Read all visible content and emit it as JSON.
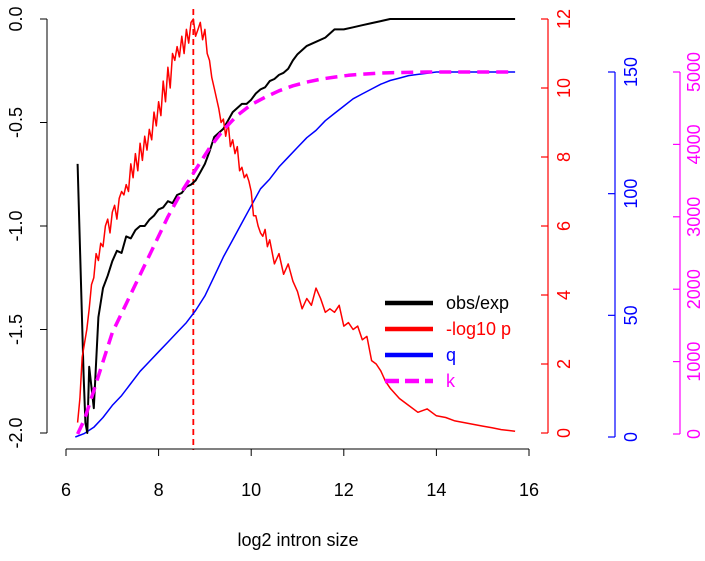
{
  "chart_data": {
    "type": "line",
    "title": "",
    "xlabel": "log2 intron size",
    "xlim": [
      5.8,
      16.0
    ],
    "x_ticks": [
      "6",
      "8",
      "10",
      "12",
      "14",
      "16"
    ],
    "grid": false,
    "legend_position": "lower-right",
    "vline": {
      "x": 8.75,
      "color": "#ff0000",
      "style": "dashed"
    },
    "axes": [
      {
        "id": "left",
        "side": "left",
        "color": "#000000",
        "range": [
          -2.0,
          0.0
        ],
        "ticks": [
          "0.0",
          "-0.5",
          "-1.0",
          "-1.5",
          "-2.0"
        ]
      },
      {
        "id": "p",
        "side": "right",
        "color": "#ff0000",
        "range": [
          0,
          12
        ],
        "ticks": [
          "0",
          "2",
          "4",
          "6",
          "8",
          "10",
          "12"
        ]
      },
      {
        "id": "q",
        "side": "right",
        "color": "#0000ff",
        "range": [
          0,
          150
        ],
        "ticks": [
          "0",
          "50",
          "100",
          "150"
        ]
      },
      {
        "id": "k",
        "side": "right",
        "color": "#ff00ff",
        "range": [
          0,
          5000
        ],
        "ticks": [
          "0",
          "1000",
          "2000",
          "3000",
          "4000",
          "5000"
        ]
      }
    ],
    "series": [
      {
        "name": "obs/exp",
        "axis": "left",
        "color": "#000000",
        "width": 2.0,
        "dash": "",
        "x": [
          6.25,
          6.38,
          6.42,
          6.46,
          6.5,
          6.55,
          6.6,
          6.7,
          6.8,
          6.9,
          7.0,
          7.1,
          7.2,
          7.3,
          7.4,
          7.5,
          7.6,
          7.7,
          7.8,
          7.9,
          8.0,
          8.1,
          8.2,
          8.3,
          8.4,
          8.5,
          8.6,
          8.7,
          8.8,
          8.9,
          9.0,
          9.1,
          9.2,
          9.3,
          9.4,
          9.5,
          9.6,
          9.7,
          9.8,
          9.9,
          10.0,
          10.1,
          10.2,
          10.3,
          10.4,
          10.5,
          10.6,
          10.7,
          10.8,
          10.9,
          11.0,
          11.2,
          11.4,
          11.6,
          11.8,
          12.0,
          12.2,
          12.4,
          12.6,
          12.8,
          13.0,
          13.2,
          13.5,
          14.0,
          14.5,
          15.0,
          15.5,
          15.7
        ],
        "y": [
          -0.7,
          -1.72,
          -1.95,
          -2.0,
          -1.68,
          -1.78,
          -1.88,
          -1.44,
          -1.3,
          -1.24,
          -1.17,
          -1.12,
          -1.13,
          -1.05,
          -1.06,
          -1.02,
          -1.0,
          -1.0,
          -0.97,
          -0.95,
          -0.92,
          -0.91,
          -0.88,
          -0.89,
          -0.85,
          -0.84,
          -0.81,
          -0.8,
          -0.78,
          -0.74,
          -0.7,
          -0.64,
          -0.57,
          -0.55,
          -0.53,
          -0.49,
          -0.45,
          -0.43,
          -0.41,
          -0.41,
          -0.39,
          -0.36,
          -0.34,
          -0.33,
          -0.3,
          -0.29,
          -0.27,
          -0.26,
          -0.24,
          -0.2,
          -0.17,
          -0.13,
          -0.11,
          -0.09,
          -0.05,
          -0.05,
          -0.04,
          -0.03,
          -0.02,
          -0.01,
          0.0,
          0.0,
          0.0,
          0.0,
          0.0,
          0.0,
          0.0,
          0.0
        ]
      },
      {
        "name": "-log10 p",
        "axis": "p",
        "color": "#ff0000",
        "width": 1.5,
        "dash": "",
        "x": [
          6.25,
          6.3,
          6.35,
          6.4,
          6.45,
          6.5,
          6.55,
          6.6,
          6.65,
          6.7,
          6.75,
          6.8,
          6.85,
          6.9,
          6.95,
          7.0,
          7.05,
          7.1,
          7.15,
          7.2,
          7.25,
          7.3,
          7.35,
          7.4,
          7.45,
          7.5,
          7.55,
          7.6,
          7.65,
          7.7,
          7.75,
          7.8,
          7.85,
          7.9,
          7.95,
          8.0,
          8.05,
          8.1,
          8.15,
          8.2,
          8.25,
          8.3,
          8.35,
          8.4,
          8.45,
          8.5,
          8.55,
          8.6,
          8.65,
          8.7,
          8.75,
          8.8,
          8.85,
          8.9,
          8.95,
          9.0,
          9.05,
          9.1,
          9.15,
          9.2,
          9.25,
          9.3,
          9.35,
          9.4,
          9.45,
          9.5,
          9.55,
          9.6,
          9.65,
          9.7,
          9.75,
          9.8,
          9.85,
          9.9,
          9.95,
          10.0,
          10.05,
          10.1,
          10.15,
          10.2,
          10.25,
          10.3,
          10.35,
          10.4,
          10.5,
          10.6,
          10.7,
          10.8,
          10.9,
          11.0,
          11.1,
          11.2,
          11.3,
          11.4,
          11.5,
          11.6,
          11.7,
          11.8,
          11.9,
          12.0,
          12.1,
          12.2,
          12.3,
          12.4,
          12.5,
          12.6,
          12.7,
          12.8,
          12.9,
          13.0,
          13.2,
          13.4,
          13.6,
          13.8,
          14.0,
          14.2,
          14.4,
          14.6,
          14.8,
          15.0,
          15.2,
          15.4,
          15.7
        ],
        "y": [
          0.3,
          1.0,
          2.2,
          2.6,
          3.0,
          3.6,
          4.3,
          4.5,
          5.2,
          5.0,
          5.5,
          5.4,
          6.0,
          6.2,
          5.8,
          6.4,
          6.6,
          6.2,
          6.8,
          7.0,
          6.9,
          7.2,
          7.0,
          7.8,
          7.4,
          8.1,
          7.6,
          8.4,
          7.9,
          8.6,
          8.2,
          8.8,
          8.5,
          9.3,
          8.9,
          9.6,
          9.2,
          10.2,
          9.6,
          10.6,
          10.0,
          11.0,
          10.8,
          11.2,
          10.9,
          11.5,
          11.0,
          11.7,
          11.3,
          11.9,
          12.0,
          11.5,
          11.7,
          11.9,
          11.4,
          11.7,
          11.0,
          10.8,
          10.3,
          10.0,
          9.7,
          9.4,
          9.0,
          9.1,
          8.6,
          9.0,
          8.3,
          8.5,
          8.1,
          8.3,
          7.6,
          7.7,
          7.4,
          7.5,
          7.3,
          7.0,
          6.3,
          6.3,
          6.0,
          5.8,
          5.7,
          5.9,
          5.4,
          5.6,
          4.9,
          5.2,
          4.6,
          4.9,
          4.4,
          4.1,
          3.6,
          3.9,
          3.7,
          4.2,
          3.9,
          3.5,
          3.6,
          3.5,
          3.7,
          3.1,
          3.2,
          3.0,
          3.1,
          2.7,
          2.8,
          2.1,
          2.0,
          1.8,
          1.5,
          1.3,
          1.0,
          0.8,
          0.6,
          0.7,
          0.5,
          0.45,
          0.35,
          0.3,
          0.25,
          0.2,
          0.15,
          0.1,
          0.05
        ]
      },
      {
        "name": "q",
        "axis": "q",
        "color": "#0000ff",
        "width": 1.5,
        "dash": "",
        "x": [
          6.2,
          6.4,
          6.6,
          6.8,
          7.0,
          7.2,
          7.4,
          7.6,
          7.8,
          8.0,
          8.2,
          8.4,
          8.6,
          8.8,
          9.0,
          9.2,
          9.4,
          9.6,
          9.8,
          10.0,
          10.2,
          10.4,
          10.6,
          10.8,
          11.0,
          11.2,
          11.4,
          11.6,
          11.8,
          12.0,
          12.2,
          12.4,
          12.6,
          12.8,
          13.0,
          13.2,
          13.4,
          13.6,
          13.8,
          14.0,
          14.4,
          15.0,
          15.5,
          15.7
        ],
        "y": [
          0.0,
          1.5,
          4.0,
          8.0,
          13.0,
          17.0,
          22.0,
          27.0,
          31.0,
          35.0,
          39.0,
          43.0,
          47.0,
          52.0,
          58.0,
          66.0,
          74.0,
          81.0,
          88.0,
          95.0,
          102.0,
          106.0,
          111.0,
          115.0,
          119.0,
          123.0,
          126.0,
          130.0,
          133.0,
          136.0,
          139.0,
          141.0,
          143.0,
          145.0,
          146.5,
          147.5,
          148.5,
          149.0,
          149.5,
          150.0,
          150.0,
          150.0,
          150.0,
          150.0
        ]
      },
      {
        "name": "k",
        "axis": "k",
        "color": "#ff00ff",
        "width": 3.5,
        "dash": "12,7",
        "x": [
          6.25,
          6.4,
          6.6,
          6.8,
          7.0,
          7.3,
          7.6,
          7.9,
          8.2,
          8.5,
          8.8,
          9.1,
          9.4,
          9.7,
          10.0,
          10.3,
          10.6,
          10.9,
          11.2,
          11.5,
          11.8,
          12.1,
          12.4,
          12.7,
          13.0,
          13.4,
          13.8,
          14.2,
          14.6,
          15.0,
          15.5,
          15.7
        ],
        "y": [
          0,
          200,
          600,
          1000,
          1400,
          1800,
          2200,
          2600,
          3000,
          3350,
          3650,
          3950,
          4200,
          4400,
          4550,
          4650,
          4740,
          4810,
          4860,
          4900,
          4930,
          4955,
          4970,
          4982,
          4990,
          4995,
          5000,
          5000,
          5000,
          5000,
          5000,
          5000
        ]
      }
    ]
  }
}
